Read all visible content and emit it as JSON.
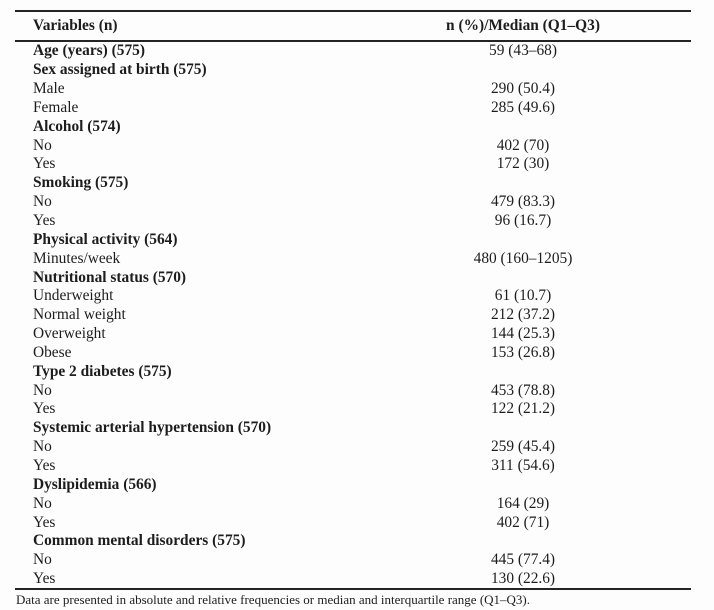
{
  "table": {
    "header": {
      "variables": "Variables (n)",
      "values": "n (%)/Median (Q1–Q3)"
    },
    "rows": [
      {
        "label": "Age (years) (575)",
        "value": "59 (43–68)",
        "bold": true
      },
      {
        "label": "Sex assigned at birth (575)",
        "value": "",
        "bold": true
      },
      {
        "label": "Male",
        "value": "290 (50.4)",
        "bold": false
      },
      {
        "label": "Female",
        "value": "285 (49.6)",
        "bold": false
      },
      {
        "label": "Alcohol (574)",
        "value": "",
        "bold": true
      },
      {
        "label": "No",
        "value": "402 (70)",
        "bold": false
      },
      {
        "label": "Yes",
        "value": "172 (30)",
        "bold": false
      },
      {
        "label": "Smoking (575)",
        "value": "",
        "bold": true
      },
      {
        "label": "No",
        "value": "479 (83.3)",
        "bold": false
      },
      {
        "label": "Yes",
        "value": "96 (16.7)",
        "bold": false
      },
      {
        "label": "Physical activity (564)",
        "value": "",
        "bold": true
      },
      {
        "label": "Minutes/week",
        "value": "480 (160–1205)",
        "bold": false
      },
      {
        "label": "Nutritional status (570)",
        "value": "",
        "bold": true
      },
      {
        "label": "Underweight",
        "value": "61 (10.7)",
        "bold": false
      },
      {
        "label": "Normal weight",
        "value": "212 (37.2)",
        "bold": false
      },
      {
        "label": "Overweight",
        "value": "144 (25.3)",
        "bold": false
      },
      {
        "label": "Obese",
        "value": "153 (26.8)",
        "bold": false
      },
      {
        "label": "Type 2 diabetes (575)",
        "value": "",
        "bold": true
      },
      {
        "label": "No",
        "value": "453 (78.8)",
        "bold": false
      },
      {
        "label": "Yes",
        "value": "122 (21.2)",
        "bold": false
      },
      {
        "label": "Systemic arterial hypertension (570)",
        "value": "",
        "bold": true
      },
      {
        "label": "No",
        "value": "259 (45.4)",
        "bold": false
      },
      {
        "label": "Yes",
        "value": "311 (54.6)",
        "bold": false
      },
      {
        "label": "Dyslipidemia (566)",
        "value": "",
        "bold": true
      },
      {
        "label": "No",
        "value": "164 (29)",
        "bold": false
      },
      {
        "label": "Yes",
        "value": "402 (71)",
        "bold": false
      },
      {
        "label": "Common mental disorders (575)",
        "value": "",
        "bold": true
      },
      {
        "label": "No",
        "value": "445 (77.4)",
        "bold": false
      },
      {
        "label": "Yes",
        "value": "130 (22.6)",
        "bold": false
      }
    ]
  },
  "footnote": "Data are presented in absolute and relative frequencies or median and interquartile range (Q1–Q3)."
}
